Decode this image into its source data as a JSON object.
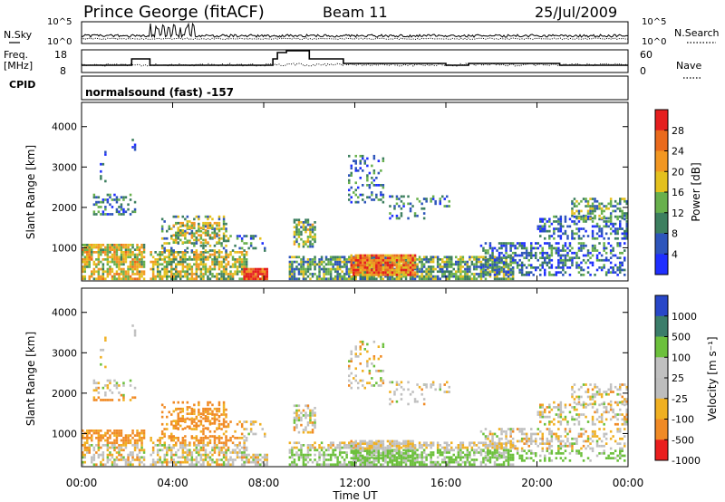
{
  "header": {
    "station": "Prince George (fitACF)",
    "beam": "Beam 11",
    "date": "25/Jul/2009"
  },
  "top_panel": {
    "nsky_label": "N.Sky",
    "left_ticks": [
      "10^5",
      "10^0"
    ],
    "right_ticks": [
      "10^5",
      "10^0"
    ],
    "nsearch_label": "N.Search"
  },
  "freq_panel": {
    "freq_label_line1": "Freq.",
    "freq_label_line2": "[MHz]",
    "left_ticks": [
      "18",
      "8"
    ],
    "right_ticks": [
      "60",
      "0"
    ],
    "nave_label": "Nave"
  },
  "cpid": {
    "label": "CPID",
    "text": "normalsound (fast) -157"
  },
  "chart_data": [
    {
      "type": "heatmap",
      "name": "power",
      "ylabel": "Slant Range [km]",
      "xlabel": "",
      "yticks": [
        "1000",
        "2000",
        "3000",
        "4000"
      ],
      "ylim": [
        180,
        4600
      ],
      "colorbar_label": "Power [dB]",
      "colorbar_ticks": [
        "4",
        "8",
        "12",
        "16",
        "20",
        "24",
        "28"
      ],
      "colors": [
        "#1f2fff",
        "#2e55bb",
        "#3d7f5f",
        "#68b04c",
        "#e4c11e",
        "#f29722",
        "#ea6a1c",
        "#e51e1e"
      ]
    },
    {
      "type": "heatmap",
      "name": "velocity",
      "ylabel": "Slant Range [km]",
      "xlabel": "Time UT",
      "xticks": [
        "00:00",
        "04:00",
        "08:00",
        "12:00",
        "16:00",
        "20:00",
        "00:00"
      ],
      "yticks": [
        "1000",
        "2000",
        "3000",
        "4000"
      ],
      "ylim": [
        180,
        4600
      ],
      "colorbar_label": "Velocity [m s⁻¹]",
      "colorbar_ticks": [
        "1000",
        "500",
        "100",
        "25",
        "-25",
        "-100",
        "-500",
        "-1000"
      ],
      "colors": [
        "#2847c8",
        "#3b7d6a",
        "#6cc03c",
        "#c0c0c0",
        "#bdbdbd",
        "#f0b022",
        "#f08a25",
        "#ea1e1e"
      ]
    }
  ]
}
